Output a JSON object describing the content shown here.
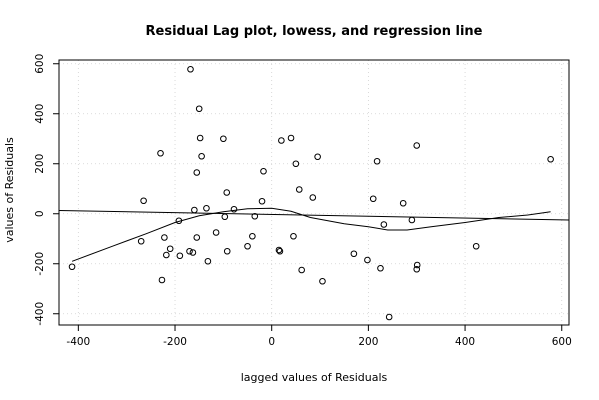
{
  "chart_data": {
    "type": "scatter",
    "title": "Residual Lag plot, lowess, and regression line",
    "xlabel": "lagged values of Residuals",
    "ylabel": "values of Residuals",
    "xlim": [
      -440,
      615
    ],
    "ylim": [
      -445,
      615
    ],
    "x_ticks": [
      -400,
      -200,
      0,
      200,
      400,
      600
    ],
    "y_ticks": [
      -400,
      -200,
      0,
      200,
      400,
      600
    ],
    "grid": true,
    "points": [
      [
        -413,
        -212
      ],
      [
        -270,
        -110
      ],
      [
        -265,
        52
      ],
      [
        -230,
        242
      ],
      [
        -227,
        -265
      ],
      [
        -222,
        -95
      ],
      [
        -218,
        -165
      ],
      [
        -210,
        -140
      ],
      [
        -192,
        -28
      ],
      [
        -190,
        -168
      ],
      [
        -170,
        -150
      ],
      [
        -168,
        578
      ],
      [
        -163,
        -155
      ],
      [
        -160,
        15
      ],
      [
        -155,
        -95
      ],
      [
        -155,
        165
      ],
      [
        -150,
        420
      ],
      [
        -148,
        303
      ],
      [
        -145,
        230
      ],
      [
        -135,
        22
      ],
      [
        -132,
        -190
      ],
      [
        -115,
        -75
      ],
      [
        -100,
        300
      ],
      [
        -97,
        -12
      ],
      [
        -93,
        85
      ],
      [
        -92,
        -150
      ],
      [
        -78,
        18
      ],
      [
        -50,
        -130
      ],
      [
        -40,
        -90
      ],
      [
        -35,
        -10
      ],
      [
        -20,
        50
      ],
      [
        -17,
        170
      ],
      [
        15,
        -145
      ],
      [
        17,
        -150
      ],
      [
        20,
        293
      ],
      [
        40,
        303
      ],
      [
        45,
        -90
      ],
      [
        50,
        200
      ],
      [
        57,
        97
      ],
      [
        62,
        -225
      ],
      [
        85,
        65
      ],
      [
        95,
        228
      ],
      [
        105,
        -270
      ],
      [
        170,
        -160
      ],
      [
        198,
        -185
      ],
      [
        210,
        60
      ],
      [
        218,
        210
      ],
      [
        225,
        -218
      ],
      [
        232,
        -43
      ],
      [
        243,
        -413
      ],
      [
        272,
        42
      ],
      [
        290,
        -25
      ],
      [
        300,
        273
      ],
      [
        300,
        -222
      ],
      [
        301,
        -205
      ],
      [
        423,
        -130
      ],
      [
        577,
        218
      ]
    ],
    "lowess": [
      [
        -413,
        -190
      ],
      [
        -330,
        -130
      ],
      [
        -260,
        -80
      ],
      [
        -200,
        -35
      ],
      [
        -150,
        -8
      ],
      [
        -100,
        8
      ],
      [
        -50,
        20
      ],
      [
        0,
        22
      ],
      [
        40,
        10
      ],
      [
        80,
        -15
      ],
      [
        150,
        -40
      ],
      [
        200,
        -52
      ],
      [
        240,
        -65
      ],
      [
        280,
        -65
      ],
      [
        330,
        -52
      ],
      [
        400,
        -35
      ],
      [
        470,
        -15
      ],
      [
        530,
        -5
      ],
      [
        577,
        8
      ]
    ],
    "regression": [
      [
        -440,
        13
      ],
      [
        615,
        -25
      ]
    ]
  }
}
